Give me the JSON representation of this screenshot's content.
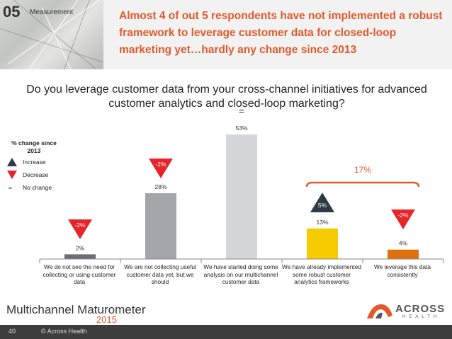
{
  "header": {
    "section_number": "05",
    "section_label": "Measurement",
    "headline": "Almost 4 of out 5 respondents have not implemented a robust framework to leverage customer data for closed-loop marketing yet…hardly any change since 2013"
  },
  "legend": {
    "title": "% change since 2013",
    "increase": "Increase",
    "decrease": "Decrease",
    "no_change_symbol": "=",
    "no_change": "No change",
    "colors": {
      "increase": "#2e3a44",
      "decrease": "#e8242a"
    }
  },
  "chart_data": {
    "type": "bar",
    "title": "Do you leverage customer data from your cross-channel initiatives for advanced customer analytics and closed-loop marketing?",
    "categories": [
      "We do not see the need for collecting or using customer data",
      "We are not collecting useful customer data yet, but we should",
      "We have started doing some analysis on our multichannel customer data",
      "We have already implemented some robust customer analytics frameworks",
      "We leverage this data consistently"
    ],
    "values": [
      2,
      28,
      53,
      13,
      4
    ],
    "value_labels": [
      "2%",
      "28%",
      "53%",
      "13%",
      "4%"
    ],
    "bar_colors": [
      "#6b6e72",
      "#a2a5a9",
      "#d4d6d9",
      "#f5cc00",
      "#e0700e"
    ],
    "change_since_2013": [
      {
        "label": "-2%",
        "direction": "decrease"
      },
      {
        "label": "-2%",
        "direction": "decrease"
      },
      {
        "label": "=",
        "direction": "none"
      },
      {
        "label": "5%",
        "direction": "increase"
      },
      {
        "label": "-2%",
        "direction": "decrease"
      }
    ],
    "group_annotation": {
      "label": "17%",
      "categories": [
        3,
        4
      ]
    },
    "ylim": [
      0,
      53
    ],
    "colors": {
      "accent": "#e05a2b"
    }
  },
  "footer": {
    "brand": "Multichannel Maturometer",
    "year": "2015",
    "logo": "ACROSS",
    "logo_sub": "HEALTH",
    "page_number": "40",
    "copyright": "© Across Health"
  }
}
